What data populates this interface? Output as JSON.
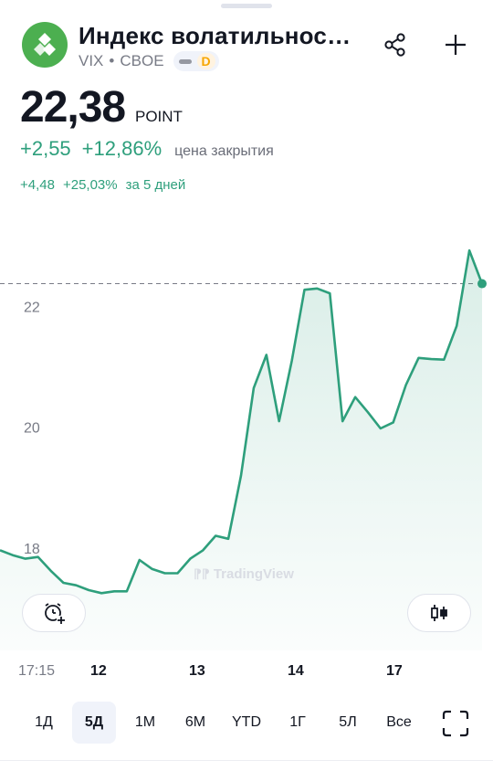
{
  "header": {
    "title": "Индекс волатильност…",
    "ticker": "VIX",
    "separator": "•",
    "exchange": "CBOE",
    "badge_letter": "D"
  },
  "quote": {
    "price": "22,38",
    "unit": "POINT",
    "change_abs": "+2,55",
    "change_pct": "+12,86%",
    "change_caption": "цена закрытия",
    "period_abs": "+4,48",
    "period_pct": "+25,03%",
    "period_caption": "за 5 дней"
  },
  "icons": {
    "share": "share-icon",
    "add": "plus-icon",
    "alert": "alarm-clock-add-icon",
    "chart_type": "candlestick-icon",
    "fullscreen": "fullscreen-icon"
  },
  "colors": {
    "line": "#2e9f7c",
    "logo": "#4caf50",
    "badge": "#f7a600"
  },
  "watermark": "TradingView",
  "chart_data": {
    "type": "area",
    "y_ticks": [
      "18",
      "20",
      "22"
    ],
    "x_ticks": [
      "17:15",
      "12",
      "13",
      "14",
      "17"
    ],
    "ylim": [
      16.3,
      23.6
    ],
    "last_value": 22.38,
    "grid": false,
    "values": [
      17.96,
      17.88,
      17.82,
      17.85,
      17.62,
      17.42,
      17.38,
      17.3,
      17.25,
      17.28,
      17.28,
      17.8,
      17.65,
      17.58,
      17.58,
      17.82,
      17.96,
      18.2,
      18.15,
      19.2,
      20.65,
      21.2,
      20.1,
      21.1,
      22.28,
      22.3,
      22.22,
      20.1,
      20.5,
      20.25,
      19.98,
      20.08,
      20.7,
      21.15,
      21.13,
      21.12,
      21.68,
      22.93,
      22.38
    ]
  },
  "ranges": [
    {
      "label": "1Д",
      "active": false
    },
    {
      "label": "5Д",
      "active": true
    },
    {
      "label": "1M",
      "active": false
    },
    {
      "label": "6M",
      "active": false
    },
    {
      "label": "YTD",
      "active": false
    },
    {
      "label": "1Г",
      "active": false
    },
    {
      "label": "5Л",
      "active": false
    },
    {
      "label": "Все",
      "active": false
    }
  ]
}
